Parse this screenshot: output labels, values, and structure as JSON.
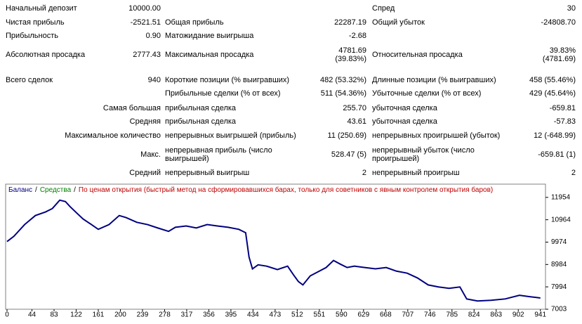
{
  "report": {
    "rows": [
      {
        "l1": "Начальный депозит",
        "v1": "10000.00",
        "l3": "Спред",
        "v3": "30"
      },
      {
        "l1": "Чистая прибыль",
        "v1": "-2521.51",
        "l2": "Общая прибыль",
        "v2": "22287.19",
        "l3": "Общий убыток",
        "v3": "-24808.70"
      },
      {
        "l1": "Прибыльность",
        "v1": "0.90",
        "l2": "Матожидание выигрыша",
        "v2": "-2.68"
      },
      {
        "l1": "Абсолютная просадка",
        "v1": "2777.43",
        "l2": "Максимальная просадка",
        "v2": [
          "4781.69",
          "(39.83%)"
        ],
        "l3": "Относительная просадка",
        "v3": [
          "39.83%",
          "(4781.69)"
        ]
      },
      {
        "l1": "Всего сделок",
        "v1": "940",
        "l2": "Короткие позиции (% выигравших)",
        "v2": "482 (53.32%)",
        "l3": "Длинные позиции (% выигравших)",
        "v3": "458 (55.46%)"
      },
      {
        "l2": "Прибыльные сделки (% от всех)",
        "v2": "511 (54.36%)",
        "l3": "Убыточные сделки (% от всех)",
        "v3": "429 (45.64%)"
      },
      {
        "v1": "Самая большая",
        "l2": "прибыльная сделка",
        "v2": "255.70",
        "l3": "убыточная сделка",
        "v3": "-659.81"
      },
      {
        "v1": "Средняя",
        "l2": "прибыльная сделка",
        "v2": "43.61",
        "l3": "убыточная сделка",
        "v3": "-57.83"
      },
      {
        "v1": "Максимальное количество",
        "l2": "непрерывных выигрышей (прибыль)",
        "v2": "11 (250.69)",
        "l3": "непрерывных проигрышей (убыток)",
        "v3": "12 (-648.99)"
      },
      {
        "v1": "Макс.",
        "l2": "непрерывная прибыль (число выигрышей)",
        "v2": "528.47 (5)",
        "l3": "непрерывный убыток (число проигрышей)",
        "v3": "-659.81 (1)"
      },
      {
        "v1": "Средний",
        "l2": "непрерывный выигрыш",
        "v2": "2",
        "l3": "непрерывный проигрыш",
        "v3": "2"
      }
    ]
  },
  "chart_data": {
    "type": "line",
    "separator": "/",
    "equity_label": "Средства",
    "equity_color": "#008000",
    "mode_label": "По ценам открытия (быстрый метод на сформировавшихся барах, только для советников с явным контролем открытия баров)",
    "mode_color": "#c00000",
    "x": [
      0,
      12,
      31,
      50,
      68,
      80,
      93,
      103,
      111,
      121,
      134,
      149,
      161,
      180,
      198,
      210,
      229,
      248,
      266,
      285,
      297,
      316,
      334,
      353,
      371,
      390,
      409,
      421,
      427,
      433,
      443,
      458,
      477,
      495,
      505,
      514,
      522,
      535,
      551,
      563,
      576,
      588,
      600,
      613,
      631,
      650,
      669,
      687,
      706,
      724,
      743,
      761,
      780,
      799,
      811,
      830,
      854,
      879,
      904,
      922,
      941
    ],
    "series": [
      {
        "name": "Баланс",
        "color": "#000080",
        "values": [
          10000,
          10230,
          10750,
          11150,
          11310,
          11460,
          11830,
          11770,
          11550,
          11310,
          11000,
          10750,
          10540,
          10750,
          11150,
          11060,
          10850,
          10750,
          10600,
          10450,
          10630,
          10690,
          10600,
          10750,
          10690,
          10630,
          10540,
          10390,
          9310,
          8790,
          8970,
          8910,
          8760,
          8910,
          8540,
          8230,
          8080,
          8480,
          8690,
          8850,
          9160,
          9000,
          8850,
          8910,
          8850,
          8790,
          8850,
          8690,
          8600,
          8390,
          8080,
          7990,
          7930,
          7990,
          7460,
          7370,
          7400,
          7460,
          7620,
          7560,
          7500
        ]
      }
    ],
    "xlim": [
      0,
      950
    ],
    "ylim": [
      7003,
      12540
    ],
    "xticks": [
      0,
      44,
      83,
      122,
      161,
      200,
      239,
      278,
      317,
      356,
      395,
      434,
      473,
      512,
      551,
      590,
      629,
      668,
      707,
      746,
      785,
      824,
      863,
      902,
      941
    ],
    "yticks": [
      7003,
      7994,
      8984,
      9974,
      10964,
      11954
    ],
    "grid": false
  }
}
